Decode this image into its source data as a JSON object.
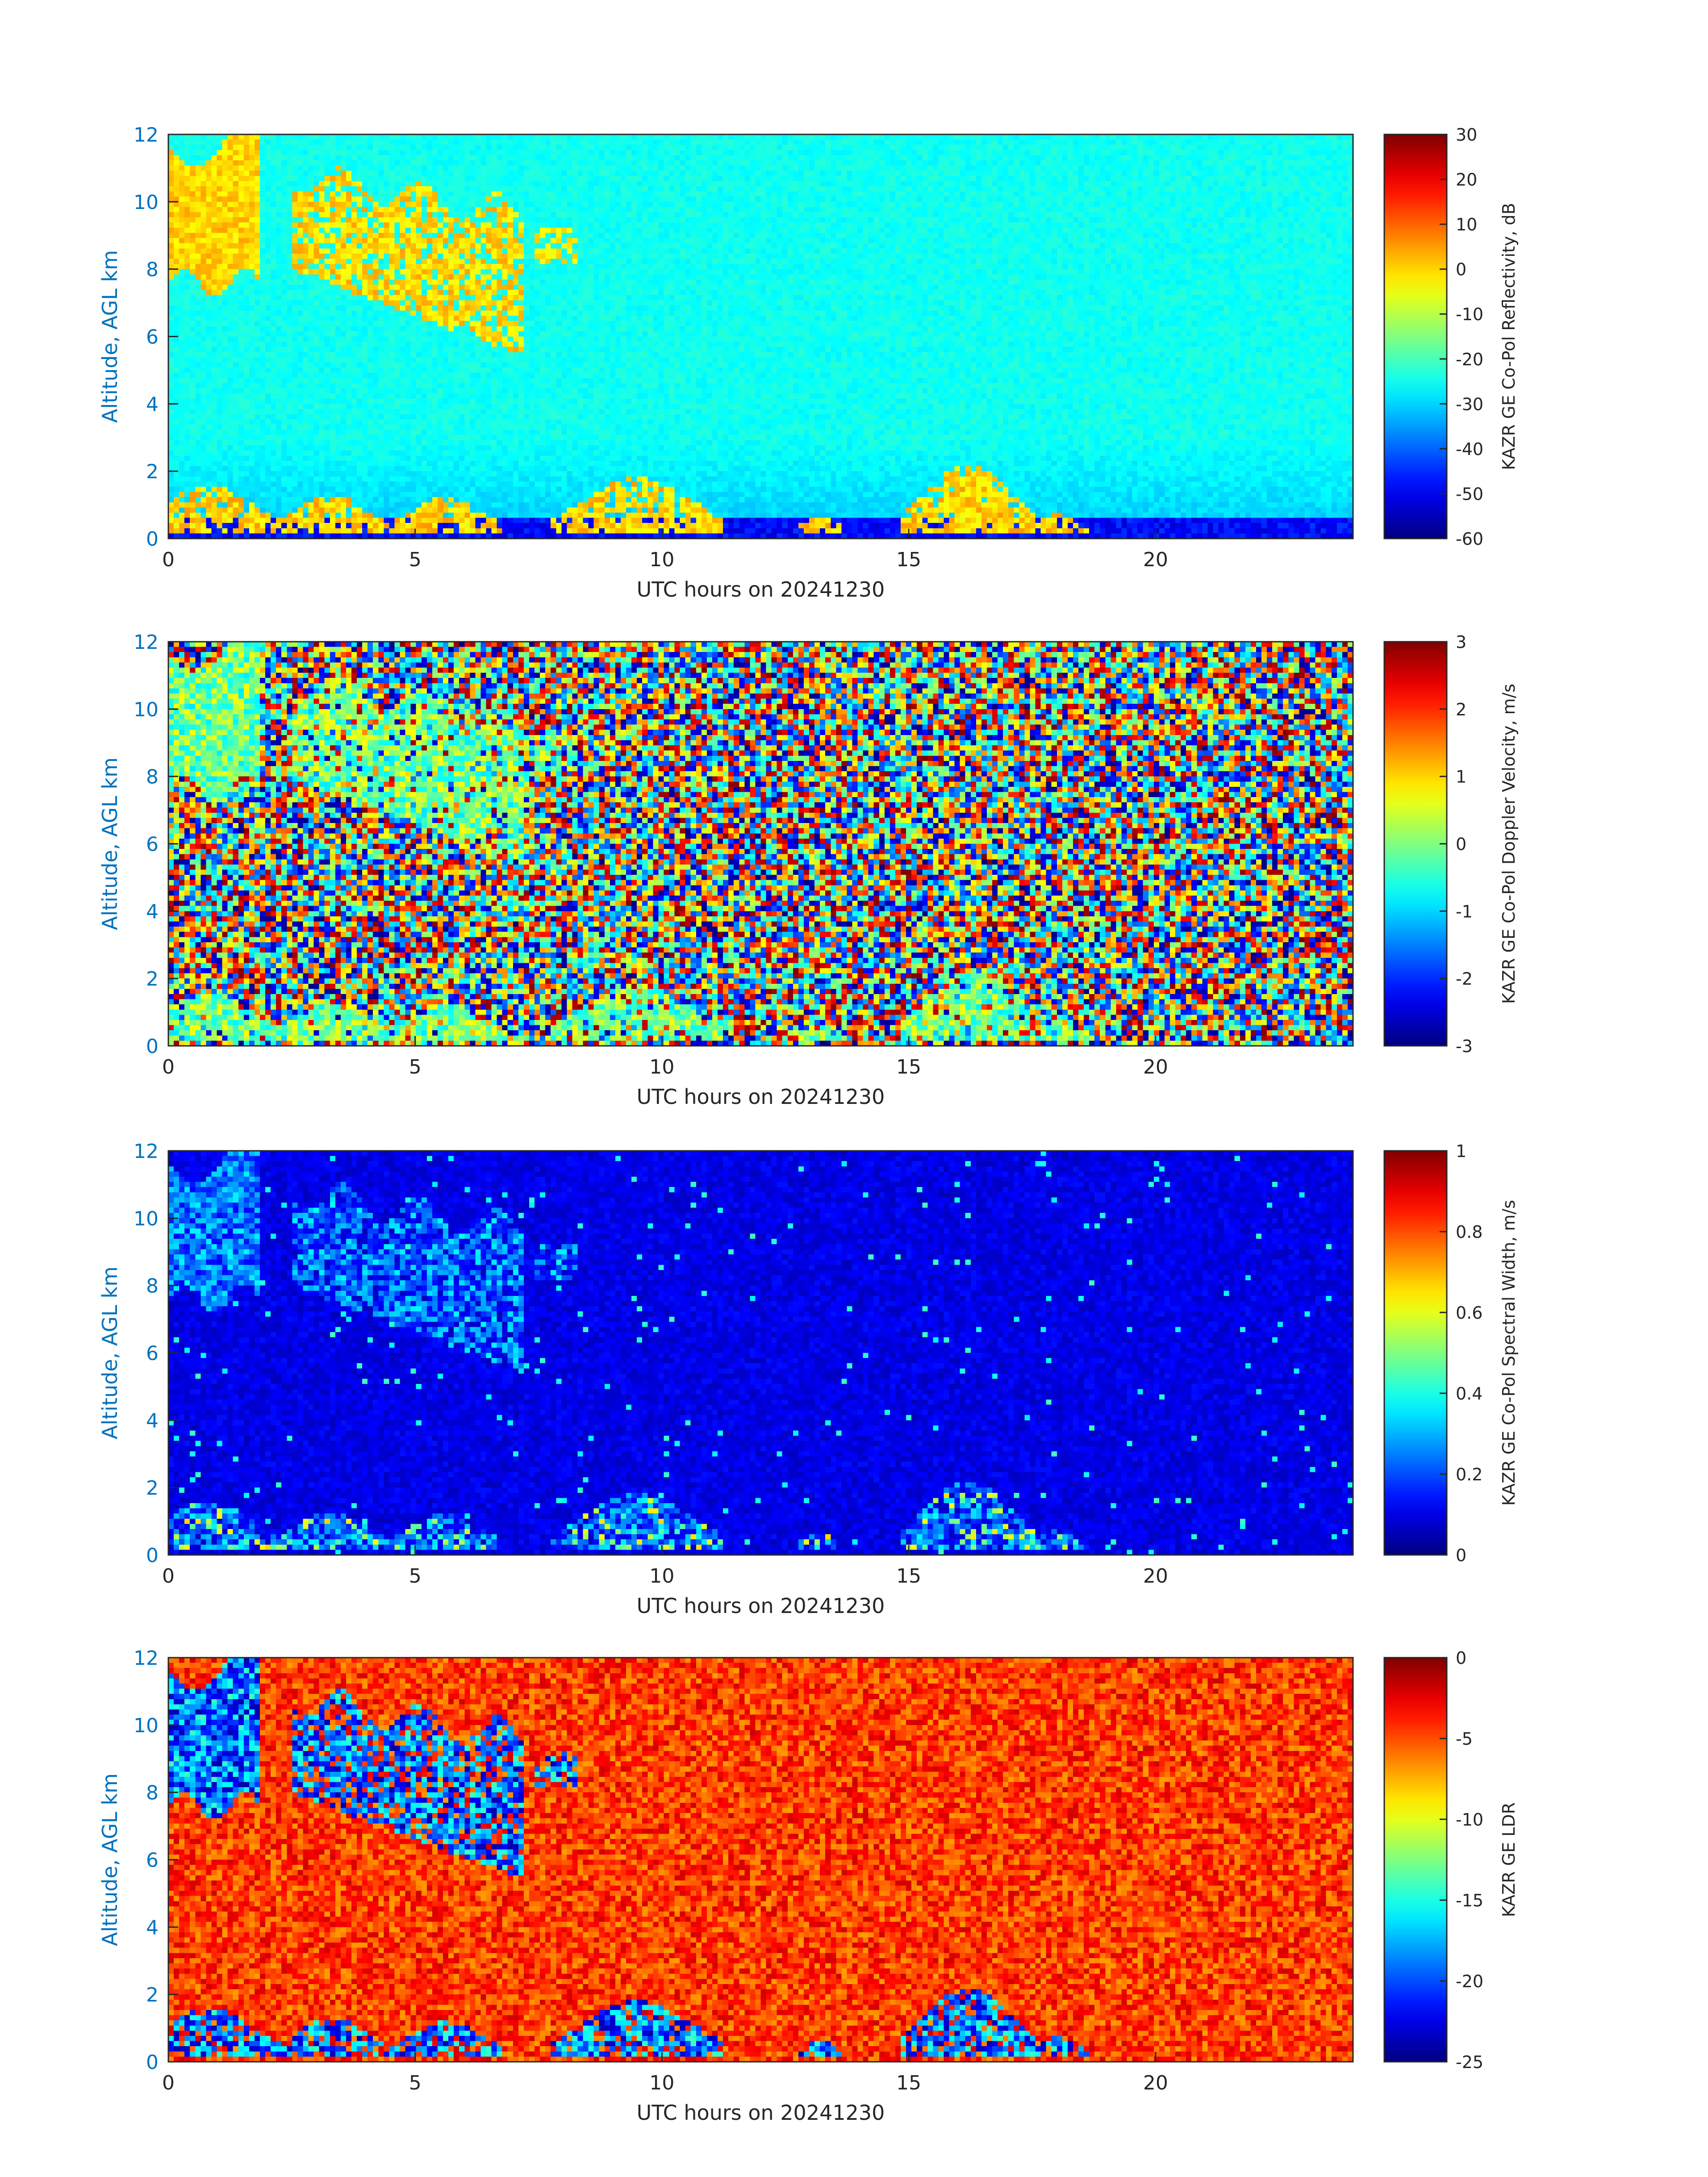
{
  "figure": {
    "background": "#ffffff"
  },
  "chart_data": [
    {
      "type": "heatmap",
      "xlabel": "UTC hours on 20241230",
      "ylabel": "Altitude, AGL km",
      "xlim": [
        0,
        24
      ],
      "ylim": [
        0,
        12
      ],
      "xticks": [
        "0",
        "5",
        "10",
        "15",
        "20"
      ],
      "yticks": [
        "0",
        "2",
        "4",
        "6",
        "8",
        "10",
        "12"
      ],
      "colorbar": {
        "label": "KAZR GE Co-Pol Reflectivity, dB",
        "range": [
          -60,
          30
        ],
        "ticks": [
          "30",
          "20",
          "10",
          "0",
          "-10",
          "-20",
          "-30",
          "-40",
          "-50",
          "-60"
        ]
      },
      "field": "reflectivity"
    },
    {
      "type": "heatmap",
      "xlabel": "UTC hours on 20241230",
      "ylabel": "Altitude, AGL km",
      "xlim": [
        0,
        24
      ],
      "ylim": [
        0,
        12
      ],
      "xticks": [
        "0",
        "5",
        "10",
        "15",
        "20"
      ],
      "yticks": [
        "0",
        "2",
        "4",
        "6",
        "8",
        "10",
        "12"
      ],
      "colorbar": {
        "label": "KAZR GE Co-Pol Doppler Velocity, m/s",
        "range": [
          -3,
          3
        ],
        "ticks": [
          "3",
          "2",
          "1",
          "0",
          "-1",
          "-2",
          "-3"
        ]
      },
      "field": "velocity"
    },
    {
      "type": "heatmap",
      "xlabel": "UTC hours on 20241230",
      "ylabel": "Altitude, AGL km",
      "xlim": [
        0,
        24
      ],
      "ylim": [
        0,
        12
      ],
      "xticks": [
        "0",
        "5",
        "10",
        "15",
        "20"
      ],
      "yticks": [
        "0",
        "2",
        "4",
        "6",
        "8",
        "10",
        "12"
      ],
      "colorbar": {
        "label": "KAZR GE Co-Pol Spectral Width, m/s",
        "range": [
          0,
          1
        ],
        "ticks": [
          "1",
          "0.8",
          "0.6",
          "0.4",
          "0.2",
          "0"
        ]
      },
      "field": "width"
    },
    {
      "type": "heatmap",
      "xlabel": "UTC hours on 20241230",
      "ylabel": "Altitude, AGL km",
      "xlim": [
        0,
        24
      ],
      "ylim": [
        0,
        12
      ],
      "xticks": [
        "0",
        "5",
        "10",
        "15",
        "20"
      ],
      "yticks": [
        "0",
        "2",
        "4",
        "6",
        "8",
        "10",
        "12"
      ],
      "colorbar": {
        "label": "KAZR GE LDR",
        "range": [
          -25,
          0
        ],
        "ticks": [
          "0",
          "-5",
          "-10",
          "-15",
          "-20",
          "-25"
        ]
      },
      "field": "ldr"
    }
  ]
}
